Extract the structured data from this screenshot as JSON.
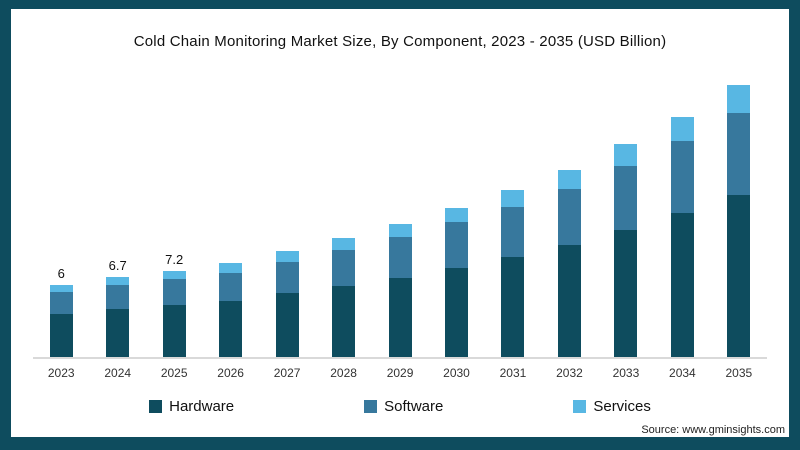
{
  "chart_data": {
    "type": "bar",
    "stacked": true,
    "title": "Cold Chain Monitoring Market Size, By Component, 2023 - 2035 (USD Billion)",
    "categories": [
      "2023",
      "2024",
      "2025",
      "2026",
      "2027",
      "2028",
      "2029",
      "2030",
      "2031",
      "2032",
      "2033",
      "2034",
      "2035"
    ],
    "series": [
      {
        "name": "Hardware",
        "color": "#0e4c5e",
        "values": [
          3.6,
          4.0,
          4.3,
          4.7,
          5.3,
          5.9,
          6.6,
          7.4,
          8.3,
          9.3,
          10.6,
          12.0,
          13.5
        ]
      },
      {
        "name": "Software",
        "color": "#37789d",
        "values": [
          1.8,
          2.0,
          2.2,
          2.3,
          2.6,
          3.0,
          3.4,
          3.8,
          4.2,
          4.7,
          5.3,
          6.0,
          6.8
        ]
      },
      {
        "name": "Services",
        "color": "#58b7e3",
        "values": [
          0.6,
          0.7,
          0.7,
          0.8,
          0.9,
          1.0,
          1.1,
          1.2,
          1.4,
          1.6,
          1.8,
          2.0,
          2.3
        ]
      }
    ],
    "totals": [
      6,
      6.7,
      7.2,
      7.8,
      8.8,
      9.9,
      11.1,
      12.4,
      13.9,
      15.6,
      17.7,
      20.0,
      22.6
    ],
    "value_labels": [
      "6",
      "6.7",
      "7.2"
    ],
    "ylim": [
      0,
      24
    ],
    "grid": false,
    "legend_position": "bottom"
  },
  "source": "Source: www.gminsights.com",
  "frame_color": "#0e4c5e"
}
